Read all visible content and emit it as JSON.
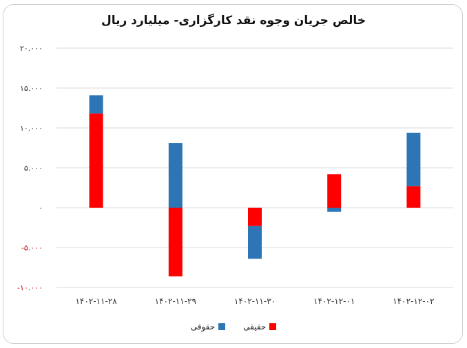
{
  "chart_data": {
    "type": "bar",
    "stacked": true,
    "title": "خالص جریان وجوه نقد کارگزاری- میلیارد ریال",
    "categories": [
      "۱۴۰۲-۱۱-۲۸",
      "۱۴۰۲-۱۱-۲۹",
      "۱۴۰۲-۱۱-۳۰",
      "۱۴۰۲-۱۲-۰۱",
      "۱۴۰۲-۱۲-۰۲"
    ],
    "ylim": [
      -10000,
      20000
    ],
    "yticks": [
      {
        "value": 20000,
        "label": "۲۰.۰۰۰"
      },
      {
        "value": 15000,
        "label": "۱۵.۰۰۰"
      },
      {
        "value": 10000,
        "label": "۱۰.۰۰۰"
      },
      {
        "value": 5000,
        "label": "۵.۰۰۰"
      },
      {
        "value": 0,
        "label": "۰"
      },
      {
        "value": -5000,
        "label": "-۵.۰۰۰"
      },
      {
        "value": -10000,
        "label": "-۱۰.۰۰۰"
      }
    ],
    "series": [
      {
        "name": "حقیقی",
        "color": "#ff0000",
        "values": [
          11800,
          -8600,
          -2300,
          4200,
          2700
        ]
      },
      {
        "name": "حقوقی",
        "color": "#2e75b6",
        "values": [
          2300,
          8100,
          -4100,
          -500,
          6700
        ]
      }
    ],
    "grid": true,
    "legend_position": "bottom",
    "negative_tick_color": "#c00000"
  }
}
